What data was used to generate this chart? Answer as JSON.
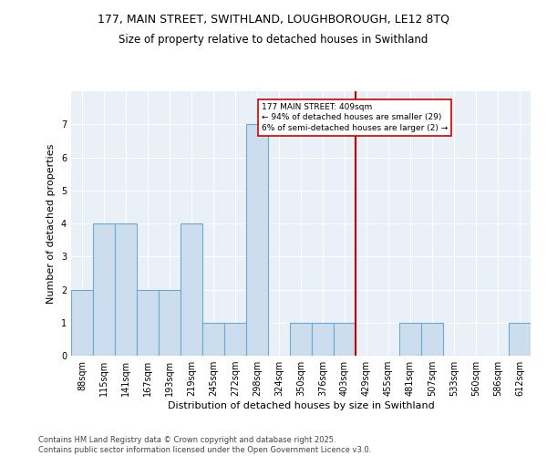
{
  "title_line1": "177, MAIN STREET, SWITHLAND, LOUGHBOROUGH, LE12 8TQ",
  "title_line2": "Size of property relative to detached houses in Swithland",
  "xlabel": "Distribution of detached houses by size in Swithland",
  "ylabel": "Number of detached properties",
  "footer_line1": "Contains HM Land Registry data © Crown copyright and database right 2025.",
  "footer_line2": "Contains public sector information licensed under the Open Government Licence v3.0.",
  "categories": [
    "88sqm",
    "115sqm",
    "141sqm",
    "167sqm",
    "193sqm",
    "219sqm",
    "245sqm",
    "272sqm",
    "298sqm",
    "324sqm",
    "350sqm",
    "376sqm",
    "403sqm",
    "429sqm",
    "455sqm",
    "481sqm",
    "507sqm",
    "533sqm",
    "560sqm",
    "586sqm",
    "612sqm"
  ],
  "values": [
    2,
    4,
    4,
    2,
    2,
    4,
    1,
    1,
    7,
    0,
    1,
    1,
    1,
    0,
    0,
    1,
    1,
    0,
    0,
    0,
    1
  ],
  "bar_color": "#ccdded",
  "bar_edge_color": "#6aaad4",
  "redline_index": 12.5,
  "redline_label": "177 MAIN STREET: 409sqm",
  "annotation_line2": "← 94% of detached houses are smaller (29)",
  "annotation_line3": "6% of semi-detached houses are larger (2) →",
  "ylim": [
    0,
    8
  ],
  "yticks": [
    0,
    1,
    2,
    3,
    4,
    5,
    6,
    7,
    8
  ],
  "redline_color": "#cc0000",
  "plot_bg_color": "#eaf0f7",
  "grid_color": "#ffffff",
  "title_fontsize": 9,
  "subtitle_fontsize": 8.5,
  "axis_label_fontsize": 8,
  "tick_fontsize": 7,
  "footer_fontsize": 6
}
